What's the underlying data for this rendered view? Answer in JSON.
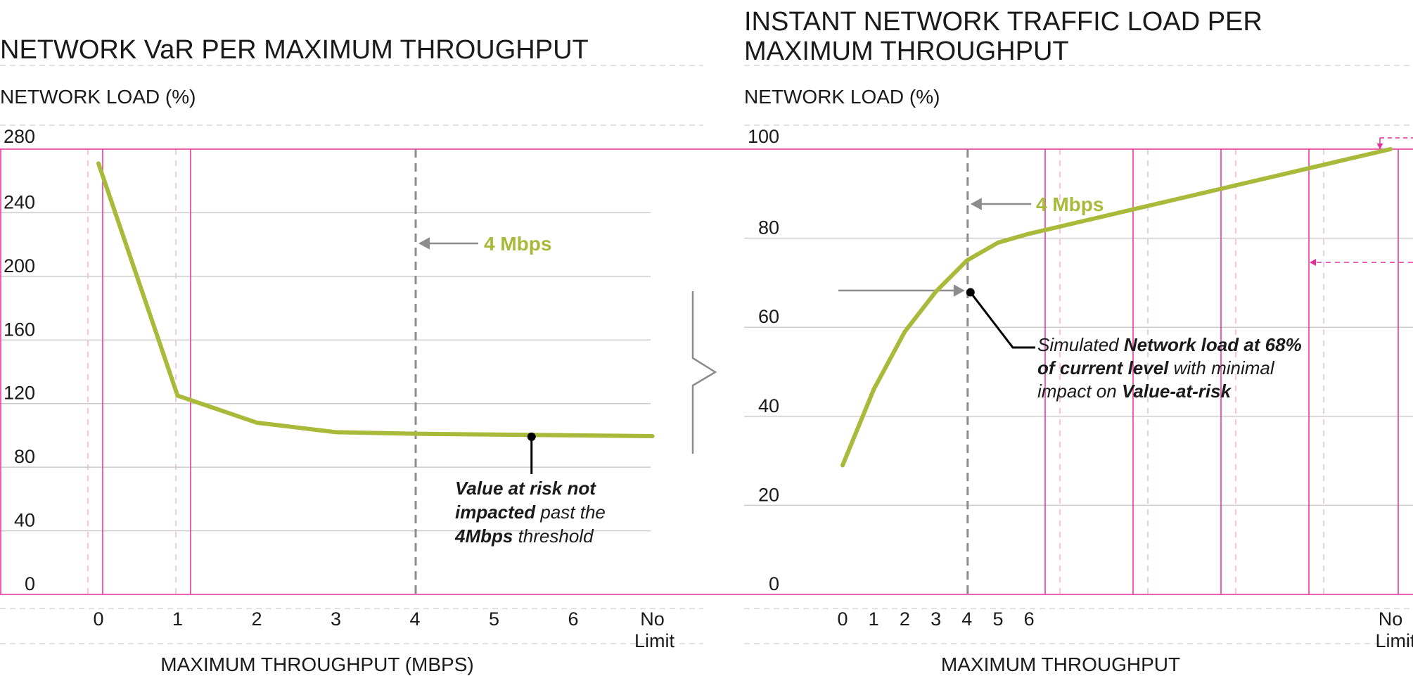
{
  "colors": {
    "series": "#a9b93a",
    "grid": "#cccccc",
    "guide": "#e62e9a",
    "threshold": "#8c8c8c",
    "text": "#1a1a1a"
  },
  "chart_data": [
    {
      "type": "line",
      "title": "NETWORK VaR PER MAXIMUM THROUGHPUT",
      "ylabel": "NETWORK LOAD (%)",
      "xlabel": "MAXIMUM THROUGHPUT (MBPS)",
      "x_ticks": [
        "0",
        "1",
        "2",
        "3",
        "4",
        "5",
        "6",
        "No Limit"
      ],
      "y_ticks": [
        "0",
        "40",
        "80",
        "120",
        "160",
        "200",
        "240",
        "280"
      ],
      "ylim": [
        0,
        280
      ],
      "grid": true,
      "series": [
        {
          "x": [
            0,
            1,
            2,
            3,
            4,
            5,
            6,
            7
          ],
          "values": [
            271,
            125,
            108,
            102,
            101,
            100.5,
            100,
            99.5
          ]
        }
      ],
      "threshold": {
        "x": 4,
        "label": "4 Mbps"
      },
      "annotation": {
        "x": 5.5,
        "y": 100,
        "lines": [
          [
            {
              "text": "Value at risk not",
              "bold": true
            }
          ],
          [
            {
              "text": "impacted",
              "bold": true
            },
            {
              "text": " past the",
              "bold": false
            }
          ],
          [
            {
              "text": "4Mbps",
              "bold": true
            },
            {
              "text": " threshold",
              "bold": false
            }
          ]
        ]
      }
    },
    {
      "type": "line",
      "title": "INSTANT NETWORK TRAFFIC LOAD PER MAXIMUM THROUGHPUT",
      "title_lines": [
        "INSTANT NETWORK TRAFFIC LOAD PER",
        "MAXIMUM THROUGHPUT"
      ],
      "ylabel": "NETWORK LOAD (%)",
      "xlabel": "MAXIMUM THROUGHPUT",
      "x_ticks": [
        "0",
        "1",
        "2",
        "3",
        "4",
        "5",
        "6",
        "No Limit"
      ],
      "x_tick_values": [
        0,
        1,
        2,
        3,
        4,
        5,
        6,
        18
      ],
      "y_ticks": [
        "0",
        "20",
        "40",
        "60",
        "80",
        "100"
      ],
      "ylim": [
        0,
        100
      ],
      "grid": true,
      "series": [
        {
          "x": [
            0,
            1,
            2,
            3,
            4,
            5,
            6,
            18
          ],
          "values": [
            29,
            46,
            59,
            68,
            75,
            79,
            81,
            100
          ]
        }
      ],
      "threshold": {
        "x": 4,
        "label": "4 Mbps"
      },
      "annotation": {
        "x": 4,
        "y": 68,
        "lines": [
          [
            {
              "text": "Simulated ",
              "bold": false
            },
            {
              "text": "Network load at 68%",
              "bold": true
            }
          ],
          [
            {
              "text": "of current level",
              "bold": true
            },
            {
              "text": " with minimal",
              "bold": false
            }
          ],
          [
            {
              "text": "impact on ",
              "bold": false
            },
            {
              "text": "Value-at-risk",
              "bold": true
            }
          ]
        ]
      }
    }
  ]
}
